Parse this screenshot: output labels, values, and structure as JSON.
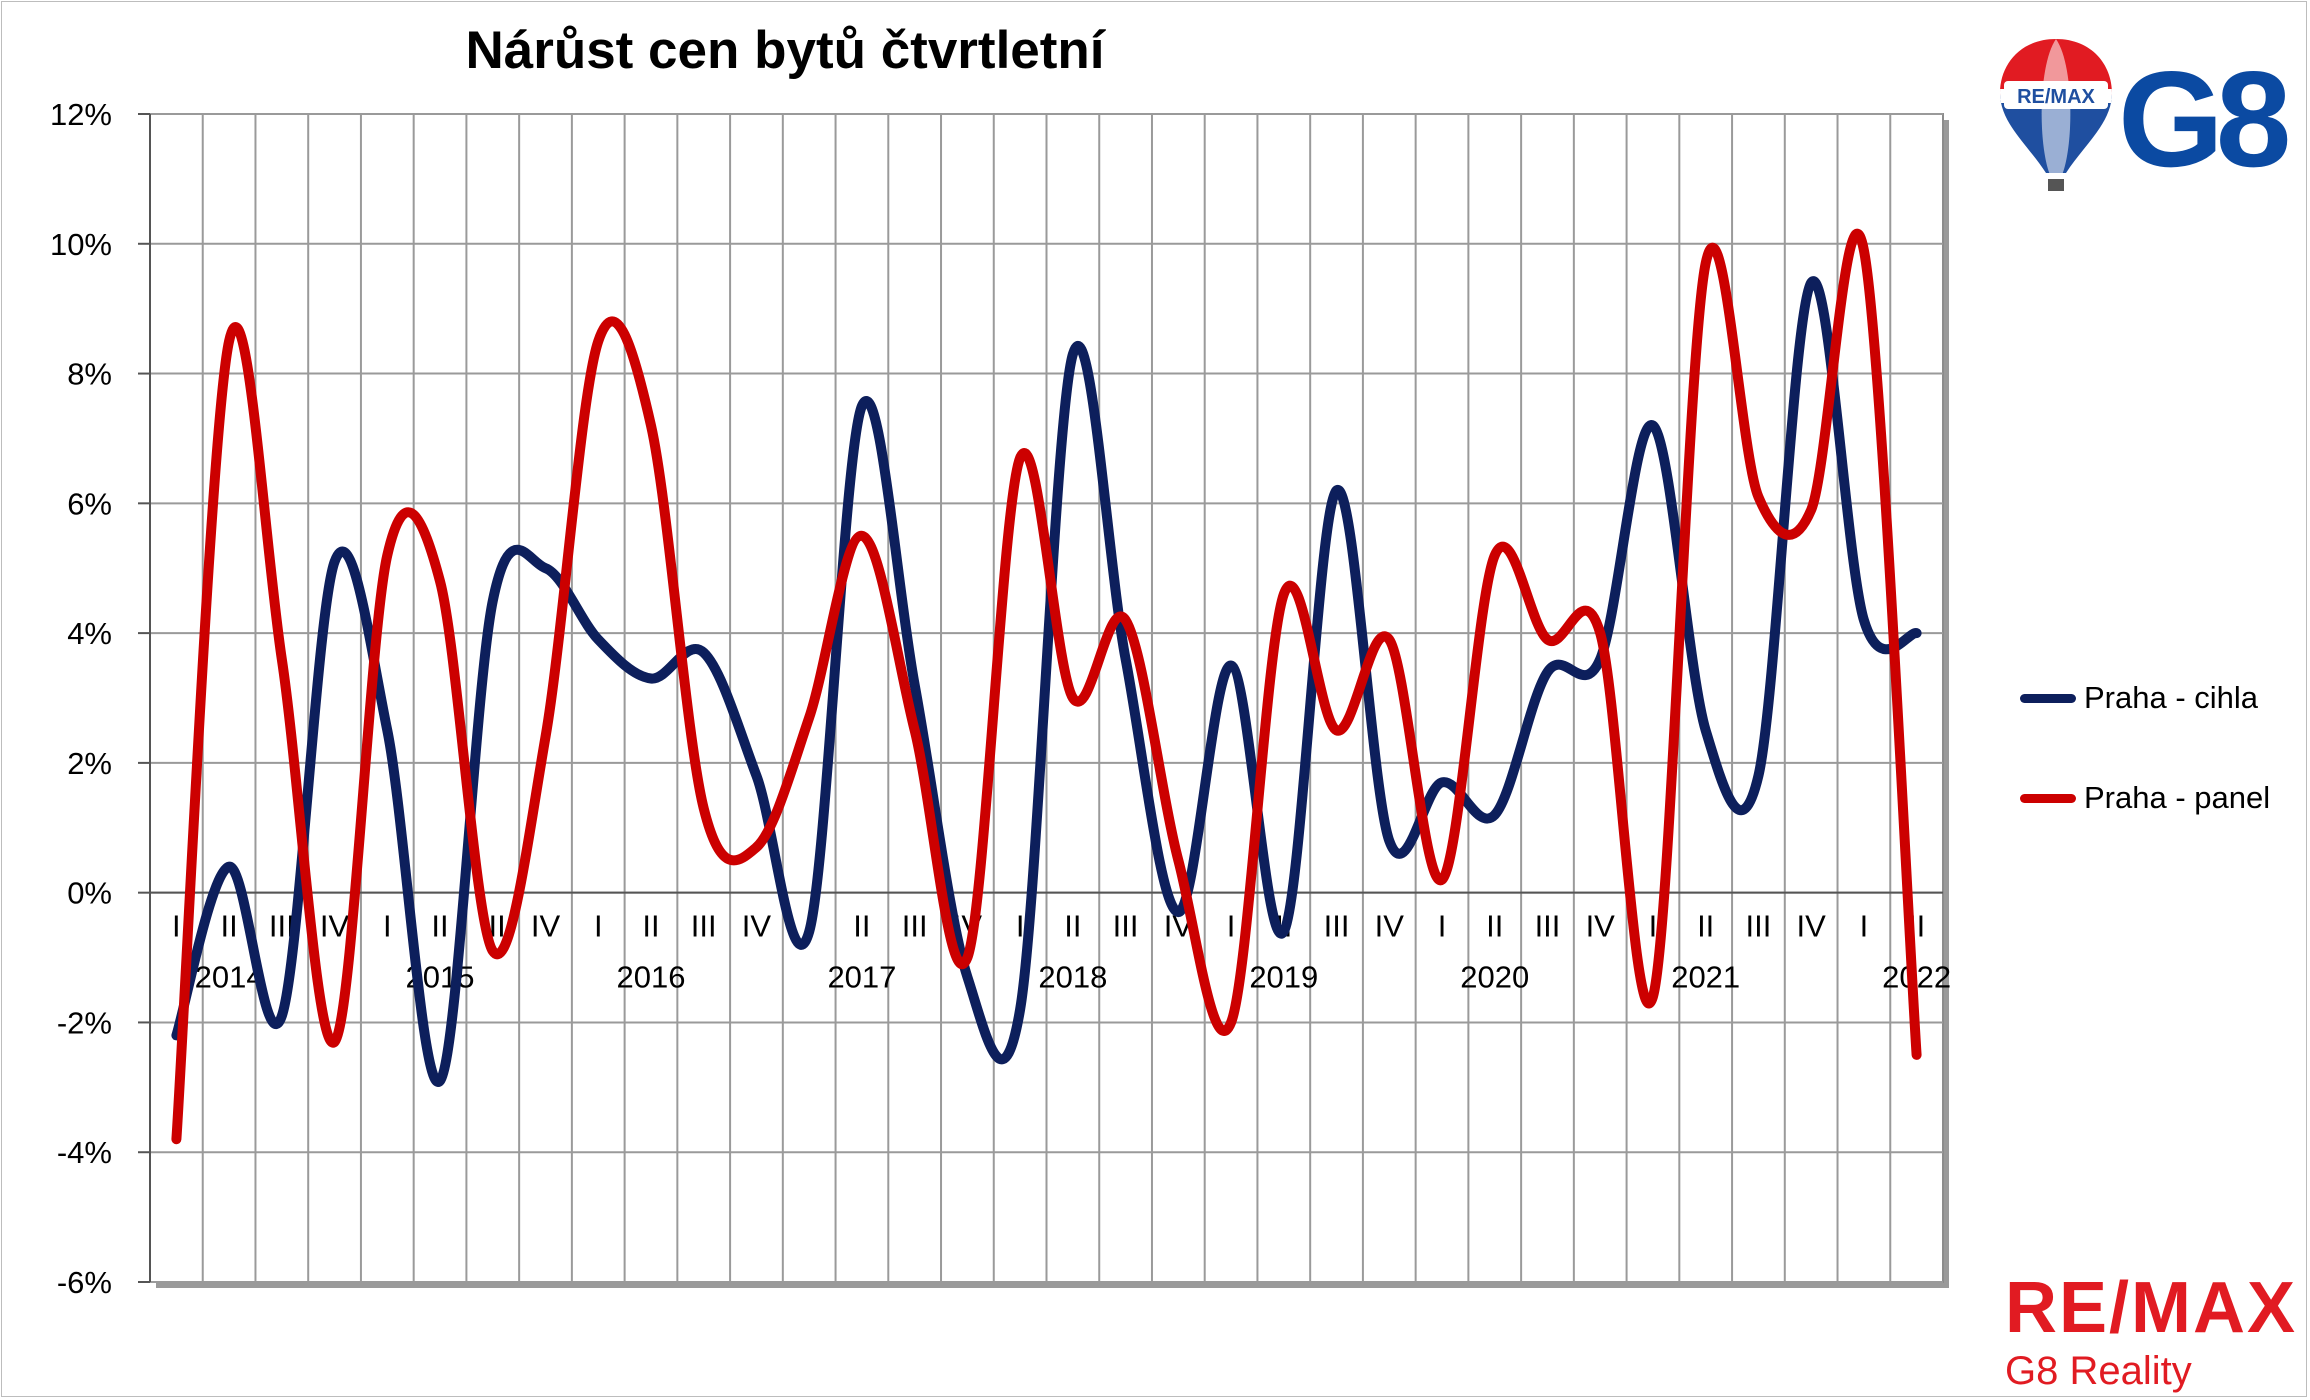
{
  "chart_data": {
    "type": "line",
    "title": "Nárůst cen bytů čtvrtletní",
    "xlabel": "",
    "ylabel": "",
    "ylim": [
      -0.06,
      0.12
    ],
    "yticks": [
      "12%",
      "10%",
      "8%",
      "6%",
      "4%",
      "2%",
      "0%",
      "-2%",
      "-4%",
      "-6%"
    ],
    "grid": true,
    "legend_position": "right",
    "categories": [
      "I",
      "II",
      "III",
      "IV",
      "I",
      "II",
      "III",
      "IV",
      "I",
      "II",
      "III",
      "IV",
      "I",
      "II",
      "III",
      "IV",
      "I",
      "II",
      "III",
      "IV",
      "I",
      "II",
      "III",
      "IV",
      "I",
      "II",
      "III",
      "IV",
      "I",
      "II",
      "III",
      "IV",
      "I",
      "II"
    ],
    "years": [
      {
        "label": "2014",
        "start_index": 0
      },
      {
        "label": "2015",
        "start_index": 4
      },
      {
        "label": "2016",
        "start_index": 8
      },
      {
        "label": "2017",
        "start_index": 12
      },
      {
        "label": "2018",
        "start_index": 16
      },
      {
        "label": "2019",
        "start_index": 20
      },
      {
        "label": "2020",
        "start_index": 24
      },
      {
        "label": "2021",
        "start_index": 28
      },
      {
        "label": "2022",
        "start_index": 32
      }
    ],
    "series": [
      {
        "name": "Praha - cihla",
        "color": "#0d1f5c",
        "values": [
          -0.022,
          0.004,
          -0.019,
          0.051,
          0.025,
          -0.029,
          0.045,
          0.05,
          0.039,
          0.033,
          0.037,
          0.018,
          -0.006,
          0.075,
          0.032,
          -0.013,
          -0.018,
          0.083,
          0.036,
          -0.003,
          0.035,
          -0.006,
          0.062,
          0.008,
          0.017,
          0.012,
          0.034,
          0.036,
          0.072,
          0.025,
          0.018,
          0.094,
          0.042,
          0.04
        ]
      },
      {
        "name": "Praha - panel",
        "color": "#cc0000",
        "values": [
          -0.038,
          0.085,
          0.036,
          -0.023,
          0.052,
          0.048,
          -0.009,
          0.024,
          0.085,
          0.072,
          0.013,
          0.007,
          0.027,
          0.055,
          0.025,
          -0.01,
          0.067,
          0.03,
          0.042,
          0.005,
          -0.02,
          0.046,
          0.025,
          0.039,
          0.002,
          0.052,
          0.039,
          0.04,
          -0.016,
          0.097,
          0.061,
          0.059,
          0.099,
          -0.025
        ]
      }
    ]
  },
  "logo_top": {
    "balloon_text": "RE/MAX",
    "brand": "G8"
  },
  "logo_bottom": {
    "brand": "RE/MAX",
    "subtitle": "G8 Reality"
  }
}
